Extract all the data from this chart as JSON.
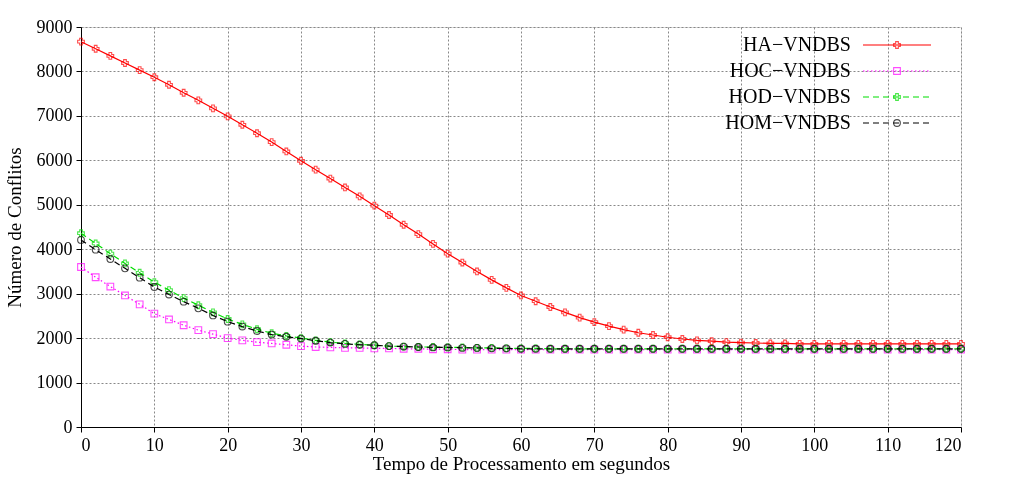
{
  "chart_data": {
    "type": "line",
    "xlabel": "Tempo de Processamento em segundos",
    "ylabel": "Número de Conflitos",
    "x": [
      0,
      2,
      4,
      6,
      8,
      10,
      12,
      14,
      16,
      18,
      20,
      22,
      24,
      26,
      28,
      30,
      32,
      34,
      36,
      38,
      40,
      42,
      44,
      46,
      48,
      50,
      52,
      54,
      56,
      58,
      60,
      62,
      64,
      66,
      68,
      70,
      72,
      74,
      76,
      78,
      80,
      82,
      84,
      86,
      88,
      90,
      92,
      94,
      96,
      98,
      100,
      102,
      104,
      106,
      108,
      110,
      112,
      114,
      116,
      118,
      120
    ],
    "series": [
      {
        "name": "HA−VNDBS",
        "color": "#ff0000",
        "marker": "cross",
        "line_style": "solid",
        "values": [
          8670,
          8510,
          8350,
          8190,
          8030,
          7870,
          7700,
          7520,
          7350,
          7170,
          6990,
          6800,
          6610,
          6410,
          6200,
          5990,
          5790,
          5590,
          5390,
          5190,
          4980,
          4770,
          4550,
          4340,
          4120,
          3900,
          3700,
          3500,
          3310,
          3130,
          2960,
          2830,
          2700,
          2580,
          2460,
          2360,
          2270,
          2190,
          2120,
          2070,
          2020,
          1980,
          1950,
          1930,
          1910,
          1900,
          1890,
          1880,
          1880,
          1870,
          1870,
          1870,
          1870,
          1870,
          1870,
          1870,
          1870,
          1870,
          1870,
          1870,
          1870
        ]
      },
      {
        "name": "HOC−VNDBS",
        "color": "#ff00ff",
        "marker": "square",
        "line_style": "dotted",
        "values": [
          3600,
          3370,
          3160,
          2960,
          2760,
          2550,
          2420,
          2290,
          2180,
          2090,
          2000,
          1950,
          1910,
          1880,
          1850,
          1820,
          1800,
          1790,
          1780,
          1780,
          1770,
          1770,
          1760,
          1760,
          1750,
          1750,
          1740,
          1740,
          1740,
          1740,
          1740,
          1740,
          1740,
          1740,
          1740,
          1740,
          1740,
          1740,
          1740,
          1740,
          1740,
          1740,
          1740,
          1740,
          1740,
          1740,
          1740,
          1740,
          1740,
          1740,
          1740,
          1740,
          1740,
          1740,
          1740,
          1740,
          1740,
          1740,
          1740,
          1740,
          1740
        ]
      },
      {
        "name": "HOD−VNDBS",
        "color": "#00dd00",
        "marker": "cross",
        "line_style": "dashed",
        "values": [
          4360,
          4130,
          3900,
          3680,
          3470,
          3260,
          3080,
          2900,
          2740,
          2580,
          2430,
          2310,
          2200,
          2110,
          2050,
          2000,
          1950,
          1910,
          1880,
          1860,
          1840,
          1820,
          1810,
          1800,
          1800,
          1790,
          1790,
          1780,
          1780,
          1770,
          1770,
          1770,
          1760,
          1760,
          1760,
          1760,
          1760,
          1760,
          1760,
          1760,
          1760,
          1760,
          1760,
          1760,
          1760,
          1760,
          1760,
          1760,
          1760,
          1760,
          1760,
          1760,
          1760,
          1760,
          1760,
          1760,
          1760,
          1760,
          1760,
          1760,
          1760
        ]
      },
      {
        "name": "HOM−VNDBS",
        "color": "#000000",
        "marker": "circle",
        "line_style": "dashed",
        "values": [
          4210,
          3990,
          3780,
          3570,
          3360,
          3150,
          2980,
          2820,
          2670,
          2510,
          2370,
          2260,
          2160,
          2080,
          2030,
          1990,
          1940,
          1900,
          1870,
          1850,
          1840,
          1820,
          1810,
          1800,
          1790,
          1790,
          1780,
          1780,
          1770,
          1770,
          1760,
          1760,
          1760,
          1760,
          1760,
          1760,
          1760,
          1760,
          1760,
          1760,
          1760,
          1760,
          1760,
          1760,
          1760,
          1760,
          1760,
          1760,
          1760,
          1760,
          1760,
          1760,
          1760,
          1760,
          1760,
          1760,
          1760,
          1760,
          1760,
          1760,
          1760
        ]
      }
    ],
    "xlim": [
      0,
      120
    ],
    "xticks": [
      0,
      10,
      20,
      30,
      40,
      50,
      60,
      70,
      80,
      90,
      100,
      110,
      120
    ],
    "ylim": [
      0,
      9000
    ],
    "yticks": [
      0,
      1000,
      2000,
      3000,
      4000,
      5000,
      6000,
      7000,
      8000,
      9000
    ],
    "grid": true,
    "legend": "top right"
  }
}
